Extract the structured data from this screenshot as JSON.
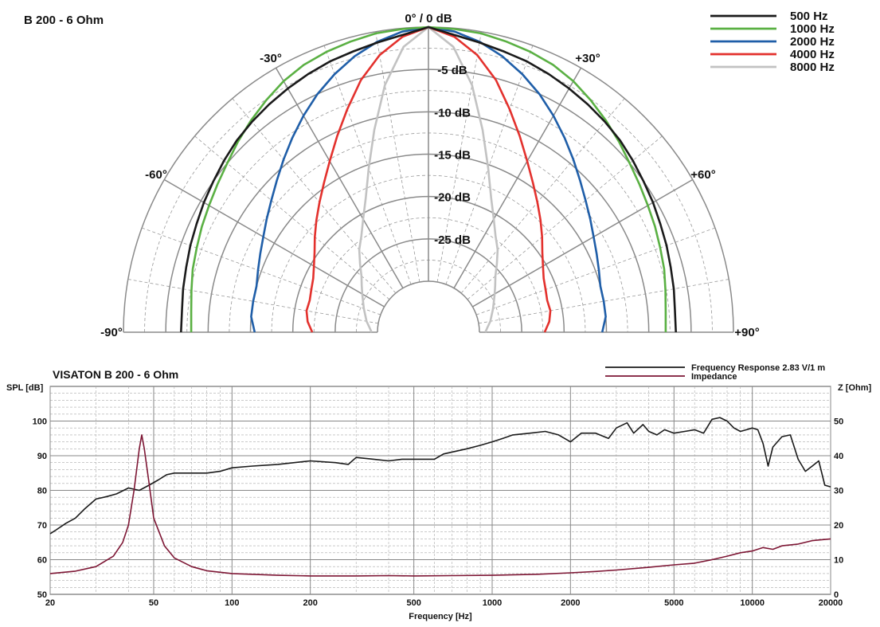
{
  "chart_data": [
    {
      "type": "polar",
      "title": "B 200 - 6 Ohm",
      "angle_labels": [
        "-90°",
        "-60°",
        "-30°",
        "0° / 0 dB",
        "+30°",
        "+60°",
        "+90°"
      ],
      "angles_deg": [
        -90,
        -60,
        -30,
        0,
        30,
        60,
        90
      ],
      "db_labels": [
        "-5 dB",
        "-10 dB",
        "-15 dB",
        "-20 dB",
        "-25 dB"
      ],
      "db_values": [
        -5,
        -10,
        -15,
        -20,
        -25
      ],
      "rlim": [
        -30,
        0
      ],
      "grid": true,
      "legend_position": "top-right",
      "angle_samples": [
        0,
        5,
        10,
        15,
        20,
        25,
        30,
        35,
        40,
        45,
        50,
        55,
        60,
        65,
        70,
        75,
        80,
        85,
        90
      ],
      "series": [
        {
          "name": "500 Hz",
          "color": "#1a1a1a",
          "values": [
            0,
            -0.8,
            -1.3,
            -1.7,
            -2,
            -2.4,
            -2.8,
            -3.2,
            -3.6,
            -4,
            -4.5,
            -5,
            -5.4,
            -5.8,
            -6.1,
            -6.4,
            -6.6,
            -6.8,
            -6.8
          ]
        },
        {
          "name": "1000 Hz",
          "color": "#5ab043",
          "values": [
            0,
            -0.1,
            -0.2,
            -0.5,
            -0.8,
            -1.2,
            -1.8,
            -2.6,
            -3.4,
            -4.2,
            -5,
            -5.6,
            -6.1,
            -6.5,
            -6.9,
            -7.2,
            -7.6,
            -7.9,
            -8
          ]
        },
        {
          "name": "2000 Hz",
          "color": "#1f5ea8",
          "values": [
            0,
            -0.4,
            -1.2,
            -2.3,
            -3.6,
            -5,
            -6.5,
            -8,
            -9.4,
            -10.7,
            -11.8,
            -12.7,
            -13.5,
            -14.1,
            -14.6,
            -15,
            -15,
            -15,
            -15.5
          ]
        },
        {
          "name": "4000 Hz",
          "color": "#e3312d",
          "values": [
            0,
            -1,
            -2.8,
            -5.2,
            -8,
            -10.5,
            -12.7,
            -14.5,
            -16,
            -17.3,
            -18.5,
            -19.6,
            -20.4,
            -21,
            -21.3,
            -21.5,
            -21.4,
            -21.7,
            -22.3
          ]
        },
        {
          "name": "8000 Hz",
          "color": "#c2c2c2",
          "values": [
            0,
            -2.2,
            -6.4,
            -11.3,
            -15.4,
            -18.5,
            -20.6,
            -22.2,
            -23.3,
            -24.6,
            -25.7,
            -26.4,
            -27,
            -27.5,
            -27.9,
            -28.3,
            -28.6,
            -29,
            -29.3
          ]
        }
      ]
    },
    {
      "type": "line",
      "title": "VISATON B 200 - 6 Ohm",
      "xlabel": "Frequency [Hz]",
      "ylabel": "SPL [dB]",
      "ylabel_right": "Z [Ohm]",
      "x_scale": "log",
      "xlim": [
        20,
        20000
      ],
      "ylim": [
        50,
        110
      ],
      "ylim_right": [
        0,
        60
      ],
      "x_ticks": [
        20,
        50,
        100,
        200,
        500,
        1000,
        2000,
        5000,
        10000,
        20000
      ],
      "x_tick_labels": [
        "20",
        "50",
        "100",
        "200",
        "500",
        "1000",
        "2000",
        "5000",
        "10000",
        "20000"
      ],
      "y_ticks": [
        50,
        60,
        70,
        80,
        90,
        100
      ],
      "y_tick_labels": [
        "50",
        "60",
        "70",
        "80",
        "90",
        "100"
      ],
      "y_ticks_right": [
        0,
        10,
        20,
        30,
        40,
        50
      ],
      "y_tick_labels_right": [
        "0",
        "10",
        "20",
        "30",
        "40",
        "50"
      ],
      "grid": true,
      "legend_position": "top-right",
      "series": [
        {
          "name": "Frequency Response 2.83 V/1 m",
          "color": "#1a1a1a",
          "axis": "left",
          "x": [
            20,
            21,
            23,
            25,
            27,
            30,
            33,
            36,
            40,
            44,
            48,
            52,
            56,
            60,
            70,
            80,
            90,
            100,
            120,
            150,
            200,
            250,
            280,
            300,
            350,
            400,
            450,
            500,
            600,
            650,
            800,
            900,
            1000,
            1100,
            1200,
            1400,
            1600,
            1800,
            2000,
            2200,
            2500,
            2800,
            3000,
            3300,
            3500,
            3800,
            4000,
            4300,
            4600,
            5000,
            5500,
            6000,
            6500,
            7000,
            7500,
            8000,
            8500,
            9000,
            9500,
            10000,
            10500,
            11000,
            11500,
            12000,
            13000,
            14000,
            15000,
            16000,
            17000,
            18000,
            19000,
            20000
          ],
          "y": [
            67.5,
            68.5,
            70.5,
            72,
            74.5,
            77.5,
            78.2,
            79,
            80.7,
            80,
            81.5,
            83,
            84.5,
            85,
            85,
            85,
            85.5,
            86.5,
            87,
            87.5,
            88.5,
            88,
            87.5,
            89.5,
            89,
            88.5,
            89,
            89,
            89,
            90.5,
            92,
            93,
            94,
            95,
            96,
            96.5,
            97,
            96,
            94,
            96.5,
            96.5,
            95,
            98,
            99.5,
            96.5,
            99,
            97,
            96,
            97.5,
            96.5,
            97,
            97.5,
            96.5,
            100.5,
            101,
            100,
            98,
            97,
            97.5,
            98,
            97.5,
            93.5,
            87,
            92.5,
            95.5,
            96,
            89,
            85.5,
            87,
            88.5,
            81.5,
            81
          ]
        },
        {
          "name": "Impedance",
          "color": "#7d1634",
          "axis": "right",
          "x": [
            20,
            25,
            30,
            35,
            38,
            40,
            42,
            44,
            45,
            46,
            48,
            50,
            55,
            60,
            70,
            80,
            100,
            150,
            200,
            300,
            400,
            500,
            700,
            1000,
            1500,
            2000,
            2500,
            3000,
            4000,
            5000,
            6000,
            7000,
            8000,
            9000,
            10000,
            11000,
            12000,
            13000,
            15000,
            17000,
            20000
          ],
          "y": [
            6,
            6.7,
            8,
            11,
            15,
            20,
            30,
            42,
            46,
            42,
            32,
            22,
            14,
            10.5,
            8,
            6.8,
            6,
            5.5,
            5.3,
            5.3,
            5.4,
            5.3,
            5.4,
            5.5,
            5.8,
            6.2,
            6.6,
            7,
            7.8,
            8.5,
            9,
            10,
            11,
            12,
            12.5,
            13.5,
            13,
            14,
            14.5,
            15.5,
            16
          ]
        }
      ]
    }
  ]
}
